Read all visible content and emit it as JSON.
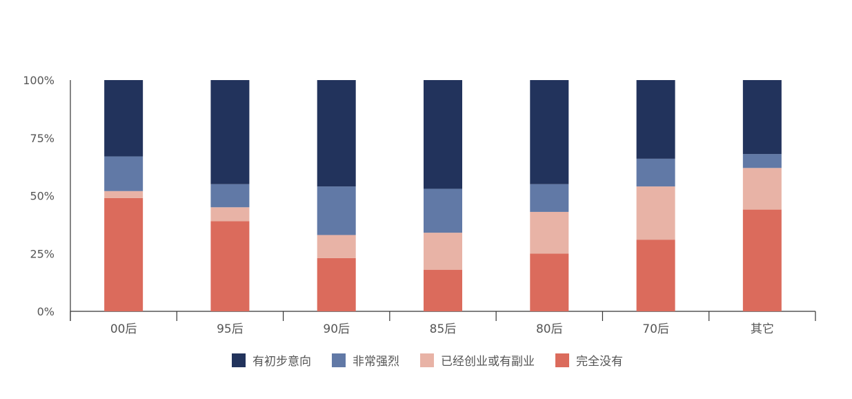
{
  "chart_data": {
    "type": "bar",
    "stacked": true,
    "percent": true,
    "categories": [
      "00后",
      "95后",
      "90后",
      "85后",
      "80后",
      "70后",
      "其它"
    ],
    "series": [
      {
        "name": "完全没有",
        "color": "#DB6B5C",
        "values": [
          49,
          39,
          23,
          18,
          25,
          31,
          44
        ]
      },
      {
        "name": "已经创业或有副业",
        "color": "#E8B3A6",
        "values": [
          3,
          6,
          10,
          16,
          18,
          23,
          18
        ]
      },
      {
        "name": "非常强烈",
        "color": "#6179A6",
        "values": [
          15,
          10,
          21,
          19,
          12,
          12,
          6
        ]
      },
      {
        "name": "有初步意向",
        "color": "#22335C",
        "values": [
          33,
          45,
          46,
          47,
          45,
          34,
          32
        ]
      }
    ],
    "legend_order": [
      "有初步意向",
      "非常强烈",
      "已经创业或有副业",
      "完全没有"
    ],
    "y_ticks": [
      "0%",
      "25%",
      "50%",
      "75%",
      "100%"
    ],
    "ylim": [
      0,
      100
    ],
    "legend_position": "bottom",
    "grid": false
  }
}
